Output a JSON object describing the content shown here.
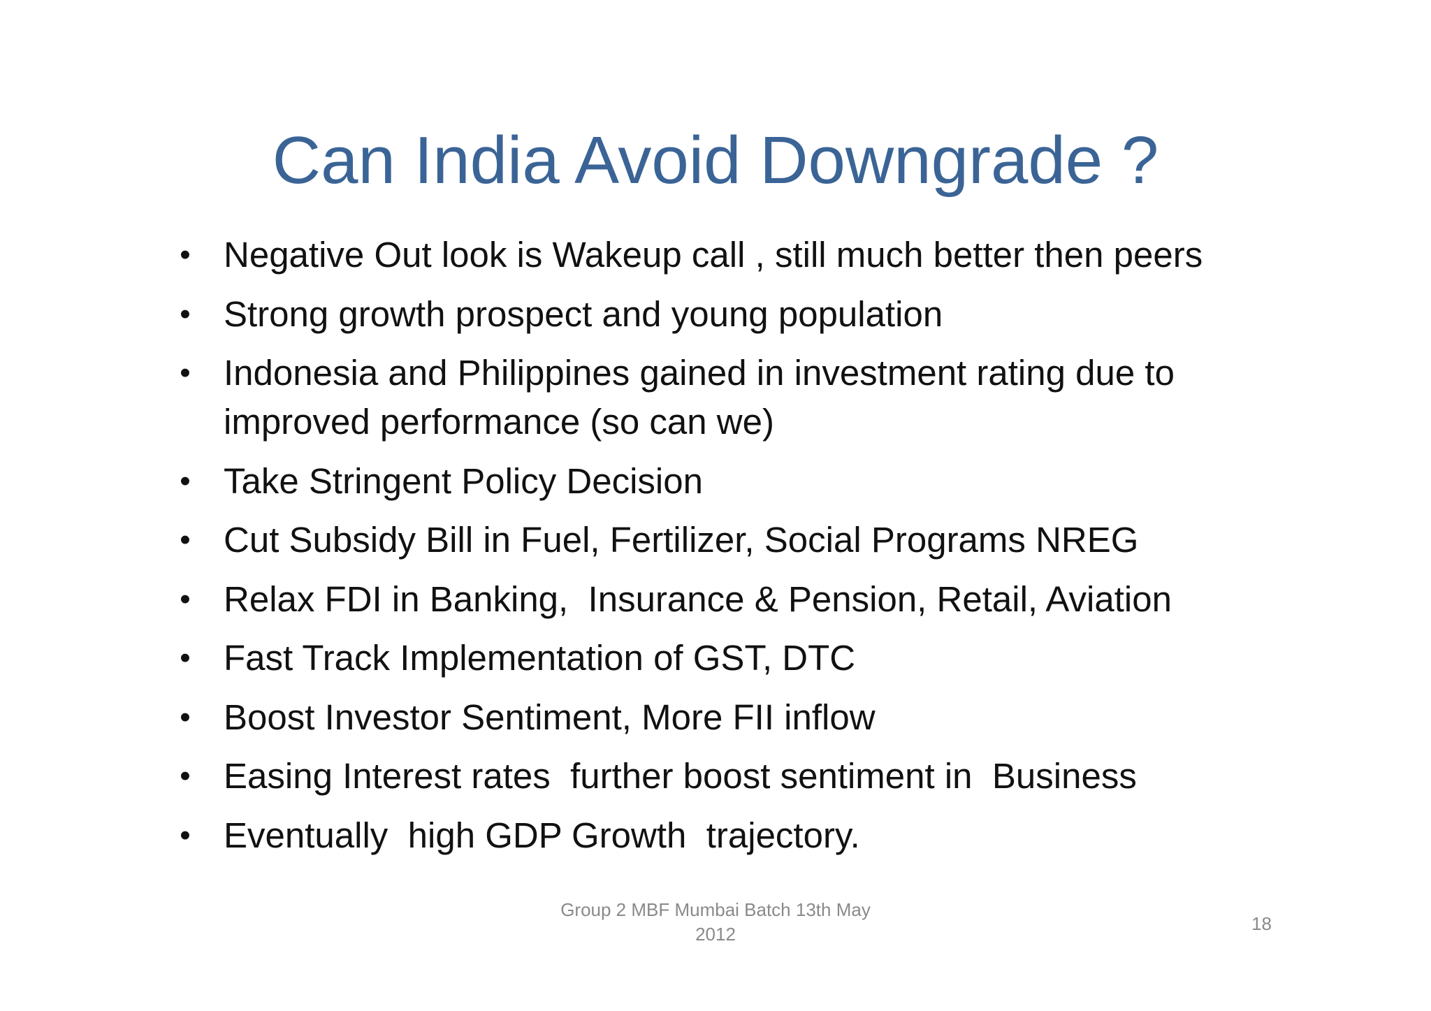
{
  "slide": {
    "title": "Can India Avoid Downgrade ?",
    "bullets": [
      "Negative Out look is Wakeup call , still much better then peers",
      "Strong growth prospect and young population",
      "Indonesia and Philippines gained in investment rating due to improved performance (so can we)",
      "Take Stringent Policy Decision",
      "Cut Subsidy Bill in Fuel, Fertilizer, Social Programs NREG",
      "Relax FDI in Banking,  Insurance & Pension, Retail, Aviation",
      "Fast Track Implementation of GST, DTC",
      "Boost Investor Sentiment, More FII inflow",
      "Easing Interest rates  further boost sentiment in  Business",
      "Eventually  high GDP Growth  trajectory."
    ],
    "bullet_symbol": "•",
    "footer": {
      "text": "Group 2 MBF Mumbai Batch 13th May 2012",
      "page_number": "18"
    }
  },
  "colors": {
    "title": "#3b6496",
    "body_text": "#111111",
    "footer_text": "#8a8a8a",
    "background": "#ffffff"
  }
}
